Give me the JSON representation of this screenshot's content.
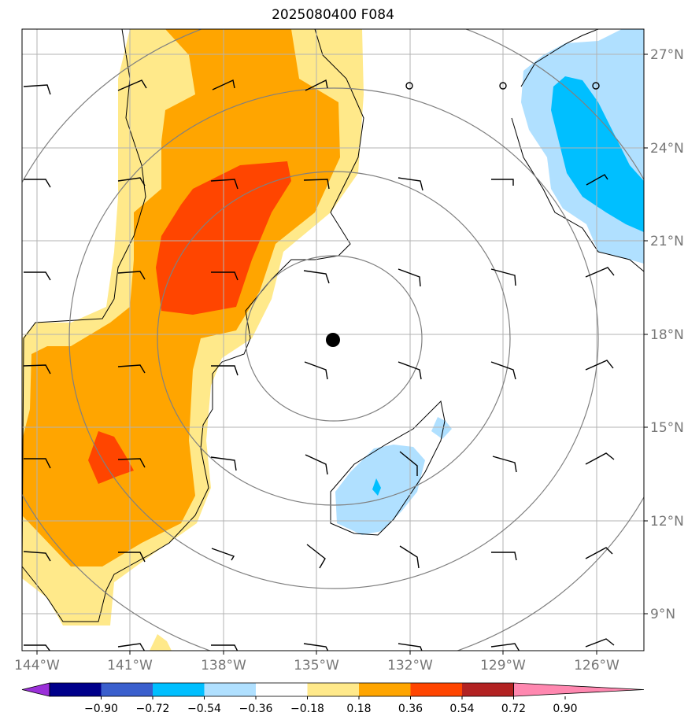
{
  "title": "2025080400 F084",
  "lat_ticks": [
    "27°N",
    "24°N",
    "21°N",
    "18°N",
    "15°N",
    "12°N",
    "9°N"
  ],
  "lon_ticks": [
    "144°W",
    "141°W",
    "138°W",
    "135°W",
    "132°W",
    "129°W",
    "126°W"
  ],
  "colorbar": {
    "labels": [
      "−0.90",
      "−0.72",
      "−0.54",
      "−0.36",
      "−0.18",
      "0.18",
      "0.36",
      "0.54",
      "0.72",
      "0.90"
    ],
    "colors": [
      "#9b30d9",
      "#00008b",
      "#3a5fcd",
      "#00bfff",
      "#b0e0ff",
      "#ffffff",
      "#ffe98a",
      "#ffa500",
      "#ff4500",
      "#b22222",
      "#ff88b0"
    ]
  },
  "fill_colors": {
    "light_yellow": "#ffe98a",
    "orange": "#ffa500",
    "red_orange": "#ff4500",
    "light_blue": "#b0e0ff",
    "deep_sky_blue": "#00bfff"
  },
  "storm_center": {
    "lat": 17.8,
    "lon": -134.6
  }
}
